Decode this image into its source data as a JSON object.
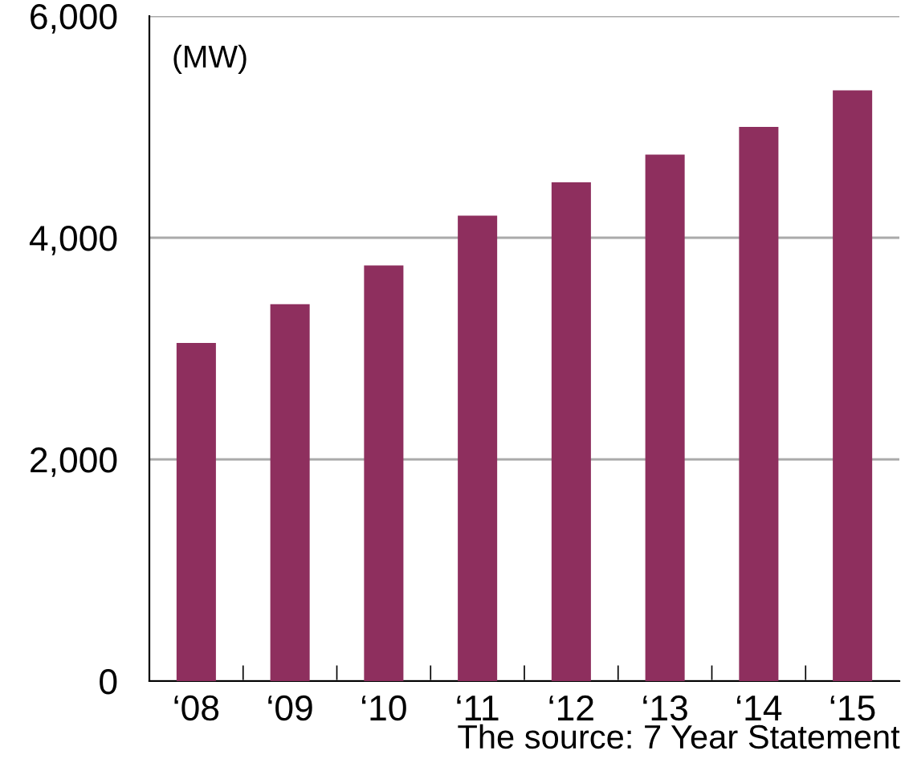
{
  "chart_data": {
    "type": "bar",
    "categories": [
      "‘08",
      "‘09",
      "‘10",
      "‘11",
      "‘12",
      "‘13",
      "‘14",
      "‘15"
    ],
    "values": [
      3050,
      3400,
      3750,
      4200,
      4500,
      4750,
      5000,
      5330
    ],
    "color": "#8e2f5e",
    "ylim": [
      0,
      6000
    ],
    "yticks": [
      {
        "value": 0,
        "label": "0"
      },
      {
        "value": 2000,
        "label": "2,000"
      },
      {
        "value": 4000,
        "label": "4,000"
      },
      {
        "value": 6000,
        "label": "6,000"
      }
    ],
    "grid": "y",
    "annotations": [
      "(MW)",
      "The source: 7 Year Statement"
    ]
  }
}
